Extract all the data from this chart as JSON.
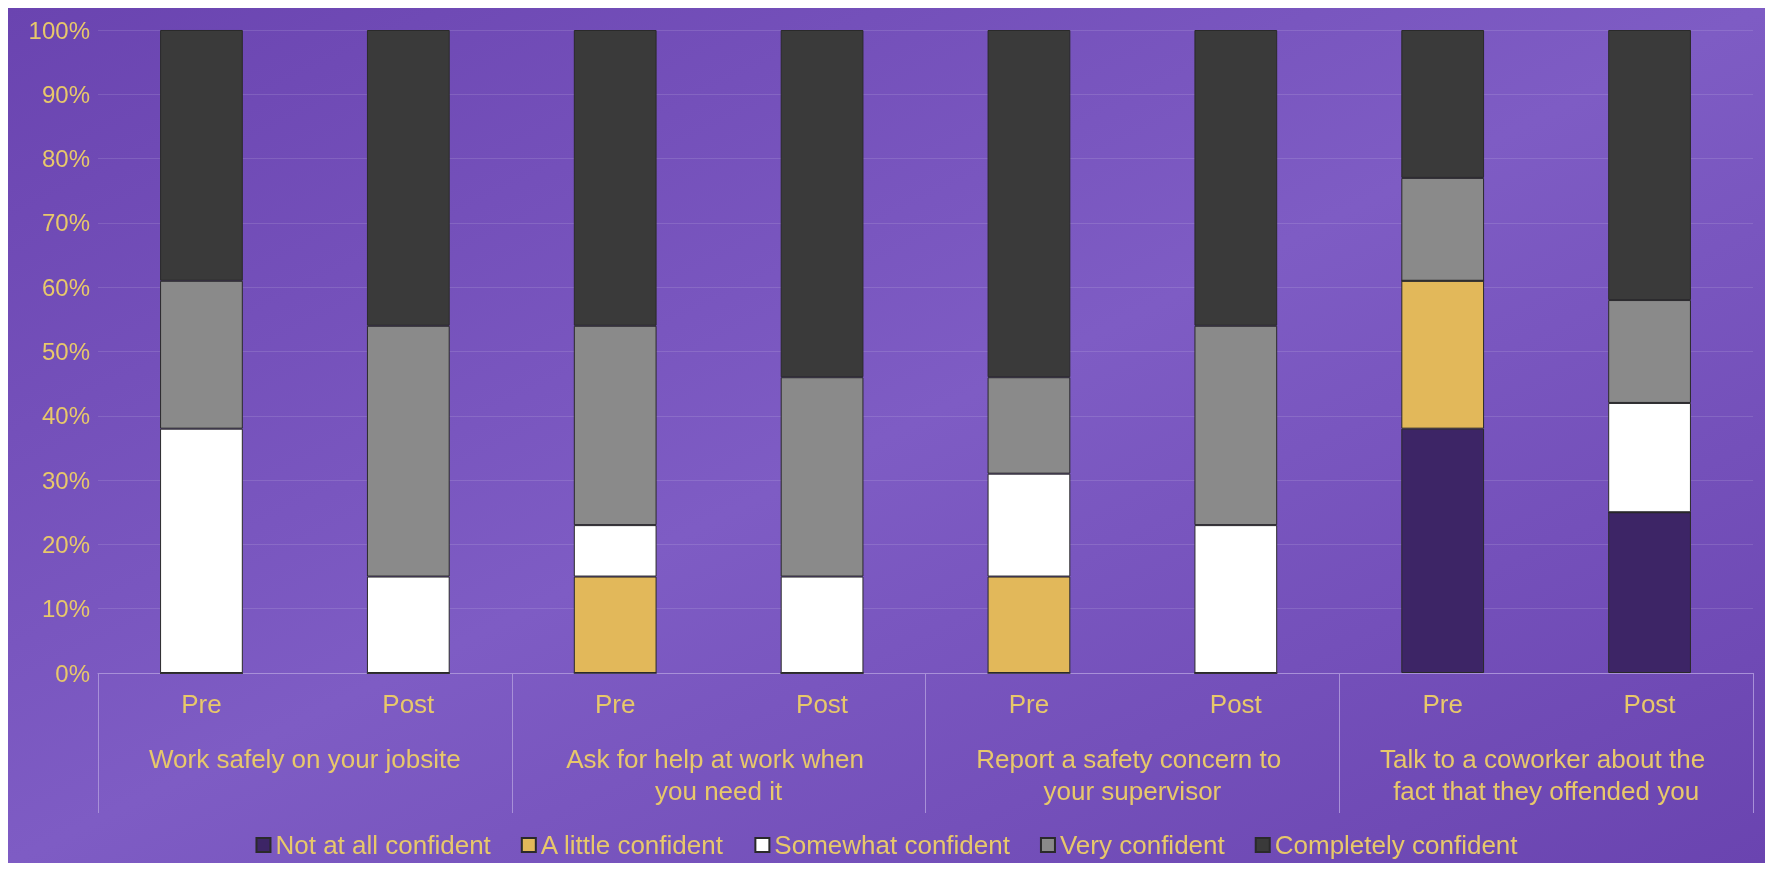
{
  "chart_data": {
    "type": "bar",
    "stacked": true,
    "categories": [
      "Pre",
      "Post",
      "Pre",
      "Post",
      "Pre",
      "Post",
      "Pre",
      "Post"
    ],
    "annotations": [
      "Work safely on your jobsite",
      "Ask for help at work when you need it",
      "Report a safety concern to your supervisor",
      "Talk to a coworker about the fact that they offended you"
    ],
    "series": [
      {
        "name": "Not at all confident",
        "color": "#3d2566",
        "values": [
          0,
          0,
          0,
          0,
          0,
          0,
          38,
          25
        ]
      },
      {
        "name": "A little confident",
        "color": "#e2b85a",
        "values": [
          0,
          0,
          15,
          0,
          15,
          0,
          23,
          0
        ]
      },
      {
        "name": "Somewhat confident",
        "color": "#ffffff",
        "values": [
          38,
          15,
          8,
          15,
          16,
          23,
          0,
          17
        ]
      },
      {
        "name": "Very confident",
        "color": "#8a8a8a",
        "values": [
          23,
          39,
          31,
          31,
          15,
          31,
          16,
          16
        ]
      },
      {
        "name": "Completely confident",
        "color": "#3a3a3a",
        "values": [
          39,
          46,
          46,
          54,
          54,
          46,
          23,
          42
        ]
      }
    ],
    "ylim": [
      0,
      100
    ],
    "yticks": [
      {
        "value": 0,
        "label": "0%"
      },
      {
        "value": 10,
        "label": "10%"
      },
      {
        "value": 20,
        "label": "20%"
      },
      {
        "value": 30,
        "label": "30%"
      },
      {
        "value": 40,
        "label": "40%"
      },
      {
        "value": 50,
        "label": "50%"
      },
      {
        "value": 60,
        "label": "60%"
      },
      {
        "value": 70,
        "label": "70%"
      },
      {
        "value": 80,
        "label": "80%"
      },
      {
        "value": 90,
        "label": "90%"
      },
      {
        "value": 100,
        "label": "100%"
      }
    ],
    "grid": "y",
    "legend": "bottom"
  }
}
